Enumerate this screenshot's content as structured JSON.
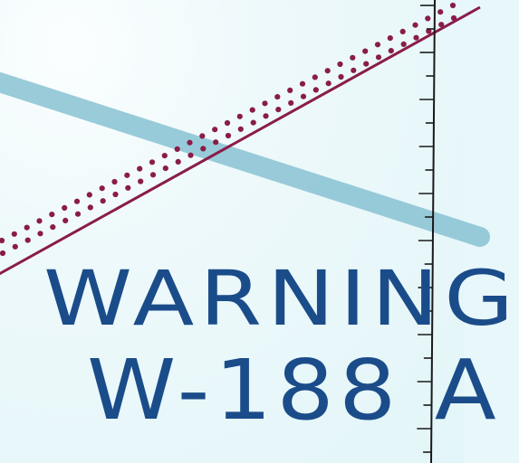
{
  "map": {
    "area_label": {
      "line1": "WARNING",
      "line2": "W-188 A"
    },
    "colors": {
      "water": "#e3f6f9",
      "route": "#8fc6d6",
      "boundary": "#8a1c49",
      "label": "#1b4c8a",
      "grid": "#1a1a1a"
    }
  }
}
